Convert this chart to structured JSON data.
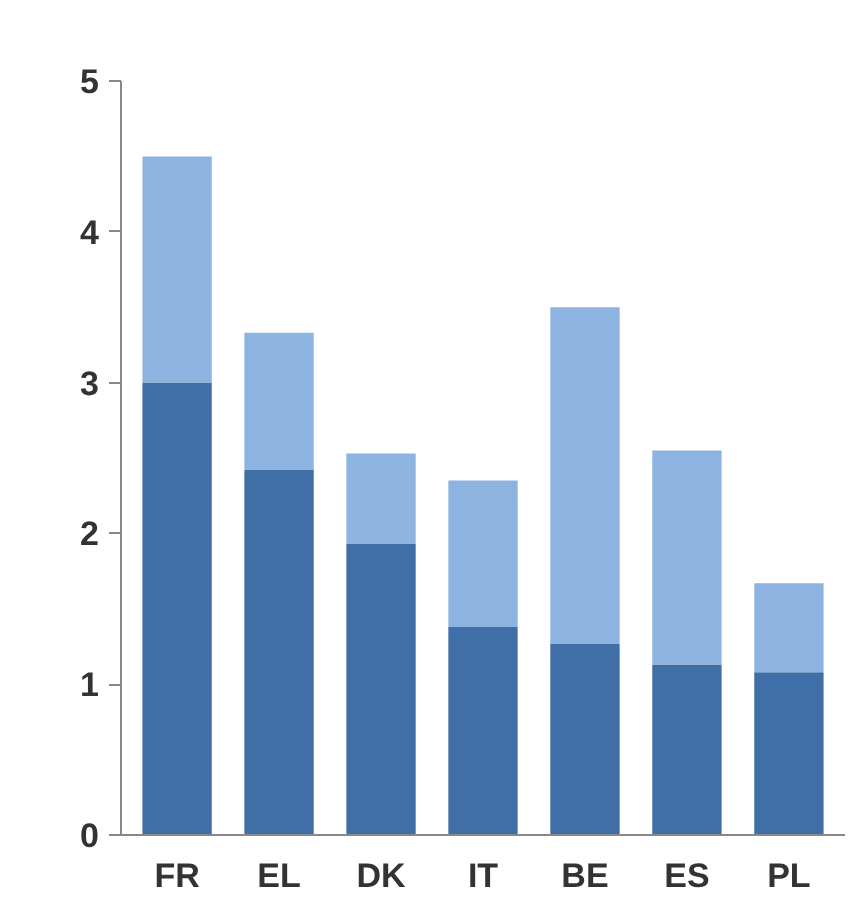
{
  "chart_data": {
    "type": "bar",
    "stacked": true,
    "categories": [
      "FR",
      "EL",
      "DK",
      "IT",
      "BE",
      "ES",
      "PL"
    ],
    "series": [
      {
        "color": "#3f6fa6",
        "values": [
          3.0,
          2.42,
          1.93,
          1.38,
          1.27,
          1.13,
          1.08
        ]
      },
      {
        "color": "#8db3e0",
        "values": [
          1.5,
          0.91,
          0.6,
          0.97,
          2.23,
          1.42,
          0.59
        ]
      }
    ],
    "ylim": [
      0,
      5
    ],
    "yticks": [
      0,
      1,
      2,
      3,
      4,
      5
    ],
    "grid": false
  }
}
